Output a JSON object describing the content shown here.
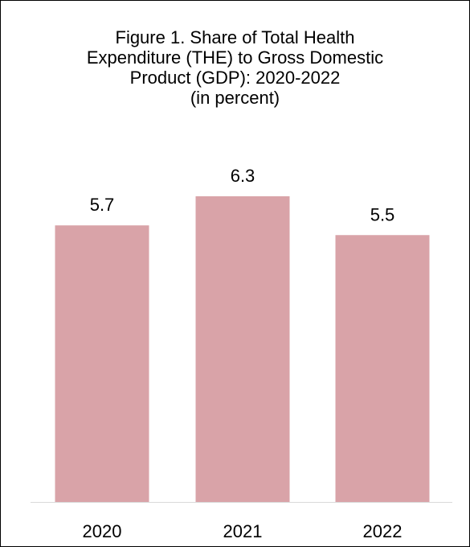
{
  "chart_data": {
    "type": "bar",
    "title_lines": [
      "Figure 1. Share of Total Health",
      "Expenditure (THE) to Gross Domestic",
      "Product (GDP): 2020-2022",
      "(in percent)"
    ],
    "categories": [
      "2020",
      "2021",
      "2022"
    ],
    "values": [
      5.7,
      6.3,
      5.5
    ],
    "value_labels": [
      "5.7",
      "6.3",
      "5.5"
    ],
    "bar_color": "#d9a3a8",
    "axis_color": "#d9d9d9",
    "ylim": [
      0,
      6.3
    ],
    "grid": false,
    "legend": "none"
  }
}
